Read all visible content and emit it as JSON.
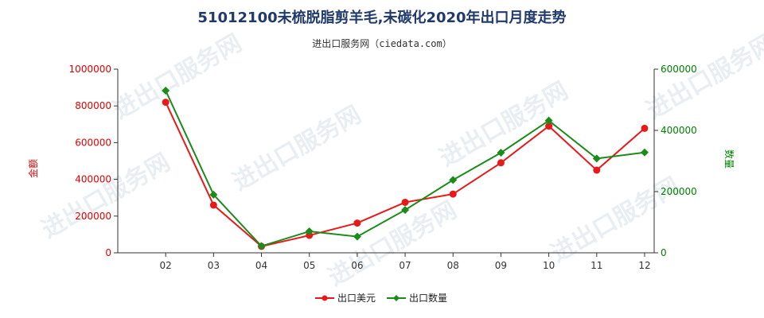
{
  "title": "51012100未梳脱脂剪羊毛,未碳化2020年出口月度走势",
  "subtitle": "进出口服务网（ciedata.com）",
  "watermark": "进出口服务网",
  "colors": {
    "left_axis": "#e00000",
    "right_axis": "#008000",
    "series_value": "#e81919",
    "series_qty": "#1a8c1a"
  },
  "chart_data": {
    "type": "line",
    "title": "51012100未梳脱脂剪羊毛,未碳化2020年出口月度走势",
    "categories": [
      "02",
      "03",
      "04",
      "05",
      "06",
      "07",
      "08",
      "09",
      "10",
      "11",
      "12"
    ],
    "y_left": {
      "label": "金额",
      "range": [
        0,
        1000000
      ],
      "ticks": [
        "0",
        "200000",
        "400000",
        "600000",
        "800000",
        "1000000"
      ]
    },
    "y_right": {
      "label": "数量",
      "range": [
        0,
        600000
      ],
      "ticks": [
        "0",
        "200000",
        "400000",
        "600000"
      ]
    },
    "legend_position": "bottom",
    "series": [
      {
        "name": "出口美元",
        "axis": "left",
        "marker": "circle",
        "values": [
          820000,
          260000,
          35000,
          95000,
          162000,
          275000,
          320000,
          490000,
          690000,
          450000,
          678000
        ]
      },
      {
        "name": "出口数量",
        "axis": "right",
        "marker": "diamond",
        "values": [
          530000,
          190000,
          22000,
          70000,
          53000,
          140000,
          238000,
          327000,
          432000,
          308000,
          328000
        ]
      }
    ]
  }
}
